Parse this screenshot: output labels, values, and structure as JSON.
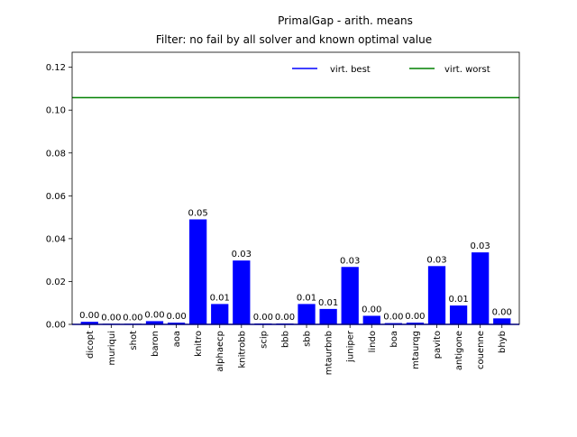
{
  "chart_data": {
    "type": "bar",
    "title": "PrimalGap - arith. means",
    "subtitle": "Filter: no fail by all solver and known optimal value",
    "xlabel": "",
    "ylabel": "",
    "ylim": [
      0,
      0.127
    ],
    "yticks": [
      "0.00",
      "0.02",
      "0.04",
      "0.06",
      "0.08",
      "0.10",
      "0.12"
    ],
    "ytick_values": [
      0,
      0.02,
      0.04,
      0.06,
      0.08,
      0.1,
      0.12
    ],
    "grid": false,
    "legend_position": "top-right",
    "bar_color": "#0000ff",
    "categories": [
      "dicopt",
      "muriqui",
      "shot",
      "baron",
      "aoa",
      "knitro",
      "alphaecp",
      "knitrobb",
      "scip",
      "bbb",
      "sbb",
      "mtaurbnb",
      "juniper",
      "lindo",
      "boa",
      "mtaurqg",
      "pavito",
      "antigone",
      "couenne",
      "bhyb"
    ],
    "values": [
      0.0012,
      0.0003,
      0.0003,
      0.0015,
      0.0008,
      0.049,
      0.0095,
      0.0298,
      0.0004,
      0.0004,
      0.0095,
      0.0072,
      0.0268,
      0.004,
      0.0006,
      0.0008,
      0.0272,
      0.0088,
      0.0336,
      0.0028
    ],
    "value_labels": [
      "0.00",
      "0.00",
      "0.00",
      "0.00",
      "0.00",
      "0.05",
      "0.01",
      "0.03",
      "0.00",
      "0.00",
      "0.01",
      "0.01",
      "0.03",
      "0.00",
      "0.00",
      "0.00",
      "0.03",
      "0.01",
      "0.03",
      "0.00"
    ],
    "reference_lines": [
      {
        "name": "virt. best",
        "value": 0.0,
        "color": "#0000ff"
      },
      {
        "name": "virt. worst",
        "value": 0.1058,
        "color": "#008000"
      }
    ]
  }
}
